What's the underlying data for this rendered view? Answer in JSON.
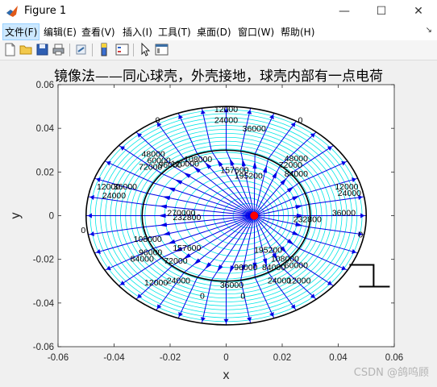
{
  "window": {
    "title": "Figure 1",
    "controls": {
      "minimize": "—",
      "maximize": "☐",
      "close": "✕"
    }
  },
  "menu": {
    "items": [
      "文件(F)",
      "编辑(E)",
      "查看(V)",
      "插入(I)",
      "工具(T)",
      "桌面(D)",
      "窗口(W)",
      "帮助(H)"
    ],
    "overflow_arrow": "↘"
  },
  "toolbar": {
    "icons": [
      "new-figure-icon",
      "open-file-icon",
      "save-icon",
      "print-icon",
      "link-icon",
      "colorbar-icon",
      "legend-icon",
      "pointer-icon",
      "property-editor-icon"
    ]
  },
  "figure": {
    "title": "镜像法——同心球壳，外壳接地，球壳内部有一点电荷",
    "watermark": "CSDN @鸽呜顾"
  },
  "chart_data": {
    "type": "contour",
    "title": "镜像法——同心球壳，外壳接地，球壳内部有一点电荷",
    "xlabel": "x",
    "ylabel": "y",
    "xlim": [
      -0.06,
      0.06
    ],
    "ylim": [
      -0.06,
      0.06
    ],
    "xticks": [
      -0.06,
      -0.04,
      -0.02,
      0,
      0.02,
      0.04,
      0.06
    ],
    "yticks": [
      -0.06,
      -0.04,
      -0.02,
      0,
      0.02,
      0.04,
      0.06
    ],
    "xticklabels": [
      "-0.06",
      "-0.04",
      "-0.02",
      "0",
      "0.02",
      "0.04",
      "0.06"
    ],
    "yticklabels": [
      "-0.06",
      "-0.04",
      "-0.02",
      "0",
      "0.02",
      "0.04",
      "0.06"
    ],
    "inner_shell_radius": 0.03,
    "outer_shell_radius": 0.05,
    "point_charge": {
      "x": 0.01,
      "y": 0,
      "color": "#ff0000"
    },
    "shell_color": "#000000",
    "equipotential_color": "#00e6e6",
    "field_line_color": "#0000e6",
    "field_line_count": 36,
    "contour_labels": [
      {
        "text": "12000",
        "x": 0.0,
        "y": 0.0475
      },
      {
        "text": "24000",
        "x": 0.0,
        "y": 0.0425
      },
      {
        "text": "36000",
        "x": 0.01,
        "y": 0.0385
      },
      {
        "text": "0",
        "x": -0.0245,
        "y": 0.0425
      },
      {
        "text": "0",
        "x": 0.0265,
        "y": 0.0425
      },
      {
        "text": "48000",
        "x": -0.026,
        "y": 0.027
      },
      {
        "text": "60000",
        "x": -0.024,
        "y": 0.024
      },
      {
        "text": "72000",
        "x": -0.027,
        "y": 0.021
      },
      {
        "text": "96000",
        "x": -0.02,
        "y": 0.022
      },
      {
        "text": "108000",
        "x": -0.01,
        "y": 0.0245
      },
      {
        "text": "120000",
        "x": -0.0147,
        "y": 0.0225
      },
      {
        "text": "157600",
        "x": 0.003,
        "y": 0.0195
      },
      {
        "text": "195200",
        "x": 0.008,
        "y": 0.017
      },
      {
        "text": "48000",
        "x": 0.025,
        "y": 0.025
      },
      {
        "text": "72000",
        "x": 0.023,
        "y": 0.022
      },
      {
        "text": "84000",
        "x": 0.025,
        "y": 0.018
      },
      {
        "text": "12000",
        "x": -0.042,
        "y": 0.012
      },
      {
        "text": "24000",
        "x": -0.04,
        "y": 0.008
      },
      {
        "text": "36000",
        "x": -0.036,
        "y": 0.012
      },
      {
        "text": "12000",
        "x": 0.043,
        "y": 0.012
      },
      {
        "text": "24000",
        "x": 0.044,
        "y": 0.009
      },
      {
        "text": "0",
        "x": -0.051,
        "y": -0.008
      },
      {
        "text": "0",
        "x": 0.048,
        "y": -0.01
      },
      {
        "text": "36000",
        "x": 0.042,
        "y": 0.0
      },
      {
        "text": "108000",
        "x": -0.028,
        "y": -0.012
      },
      {
        "text": "96000",
        "x": -0.027,
        "y": -0.018
      },
      {
        "text": "84000",
        "x": -0.03,
        "y": -0.021
      },
      {
        "text": "72000",
        "x": -0.018,
        "y": -0.022
      },
      {
        "text": "157600",
        "x": -0.014,
        "y": -0.016
      },
      {
        "text": "195200",
        "x": 0.015,
        "y": -0.017
      },
      {
        "text": "108000",
        "x": 0.021,
        "y": -0.021
      },
      {
        "text": "96000",
        "x": 0.007,
        "y": -0.025
      },
      {
        "text": "84000",
        "x": 0.017,
        "y": -0.025
      },
      {
        "text": "60000",
        "x": 0.025,
        "y": -0.024
      },
      {
        "text": "12000",
        "x": -0.025,
        "y": -0.032
      },
      {
        "text": "24000",
        "x": -0.017,
        "y": -0.031
      },
      {
        "text": "36000",
        "x": 0.002,
        "y": -0.033
      },
      {
        "text": "24000",
        "x": 0.019,
        "y": -0.031
      },
      {
        "text": "12000",
        "x": 0.026,
        "y": -0.031
      },
      {
        "text": "0",
        "x": -0.0085,
        "y": -0.038
      },
      {
        "text": "0",
        "x": 0.006,
        "y": -0.038
      },
      {
        "text": "270000",
        "x": -0.016,
        "y": 0.0
      },
      {
        "text": "232800",
        "x": -0.014,
        "y": -0.002
      },
      {
        "text": "232800",
        "x": 0.029,
        "y": -0.003
      }
    ],
    "grid": false
  }
}
